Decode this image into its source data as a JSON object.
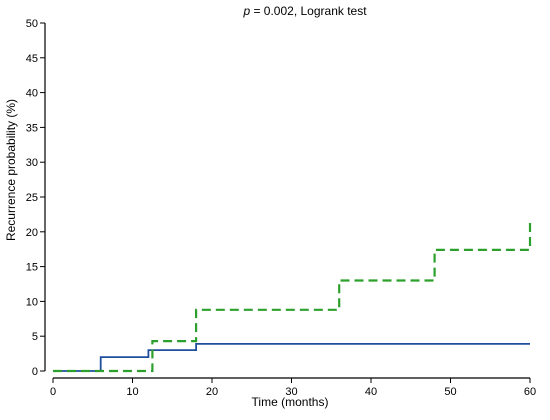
{
  "chart_data": {
    "type": "line",
    "step": true,
    "title": "p = 0.002, Logrank test",
    "title_parts": {
      "p_symbol": "p",
      "rest": " = 0.002, Logrank test"
    },
    "xlabel": "Time (months)",
    "ylabel": "Recurrence probability (%)",
    "xlim": [
      0,
      60
    ],
    "ylim": [
      0,
      50
    ],
    "x_ticks": [
      0,
      10,
      20,
      30,
      40,
      50,
      60
    ],
    "y_ticks": [
      0,
      5,
      10,
      15,
      20,
      25,
      30,
      35,
      40,
      45,
      50
    ],
    "grid": false,
    "legend": "none",
    "series": [
      {
        "color": "#1f4e9c",
        "dash": "solid",
        "points": [
          [
            0,
            0
          ],
          [
            6,
            0
          ],
          [
            6,
            2
          ],
          [
            12,
            2
          ],
          [
            12,
            3
          ],
          [
            18,
            3
          ],
          [
            18,
            3.9
          ],
          [
            60,
            3.9
          ]
        ]
      },
      {
        "color": "#2ca02c",
        "dash": "dashed",
        "points": [
          [
            0,
            0
          ],
          [
            12.5,
            0
          ],
          [
            12.5,
            4.3
          ],
          [
            18,
            4.3
          ],
          [
            18,
            8.8
          ],
          [
            36,
            8.8
          ],
          [
            36,
            13
          ],
          [
            48,
            13
          ],
          [
            48,
            17.4
          ],
          [
            60,
            17.4
          ],
          [
            60,
            21.6
          ]
        ]
      }
    ]
  }
}
